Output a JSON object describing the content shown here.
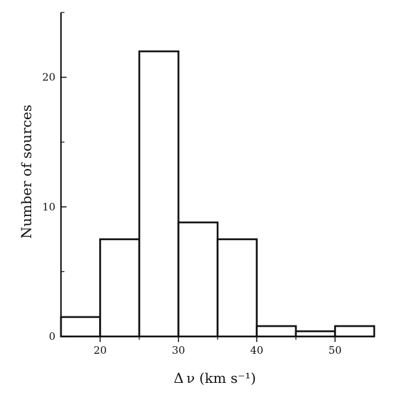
{
  "chart_data": {
    "type": "bar",
    "histogram": true,
    "bin_edges": [
      15,
      20,
      25,
      30,
      35,
      40,
      45,
      50,
      55
    ],
    "values": [
      1.5,
      7.5,
      22,
      8.8,
      7.5,
      0.8,
      0.4,
      0.8
    ],
    "title": "",
    "xlabel": "Δ ν (km s⁻¹)",
    "ylabel": "Number of sources",
    "xlim": [
      15,
      55
    ],
    "ylim": [
      0,
      25
    ],
    "x_ticks": [
      20,
      30,
      40,
      50
    ],
    "x_minor_ticks": [
      25,
      35,
      45
    ],
    "y_ticks": [
      0,
      10,
      20
    ],
    "y_minor_ticks": [
      5,
      15,
      25
    ],
    "grid": false,
    "legend": "none",
    "bar_fill": "#ffffff",
    "line_color": "#111111"
  }
}
